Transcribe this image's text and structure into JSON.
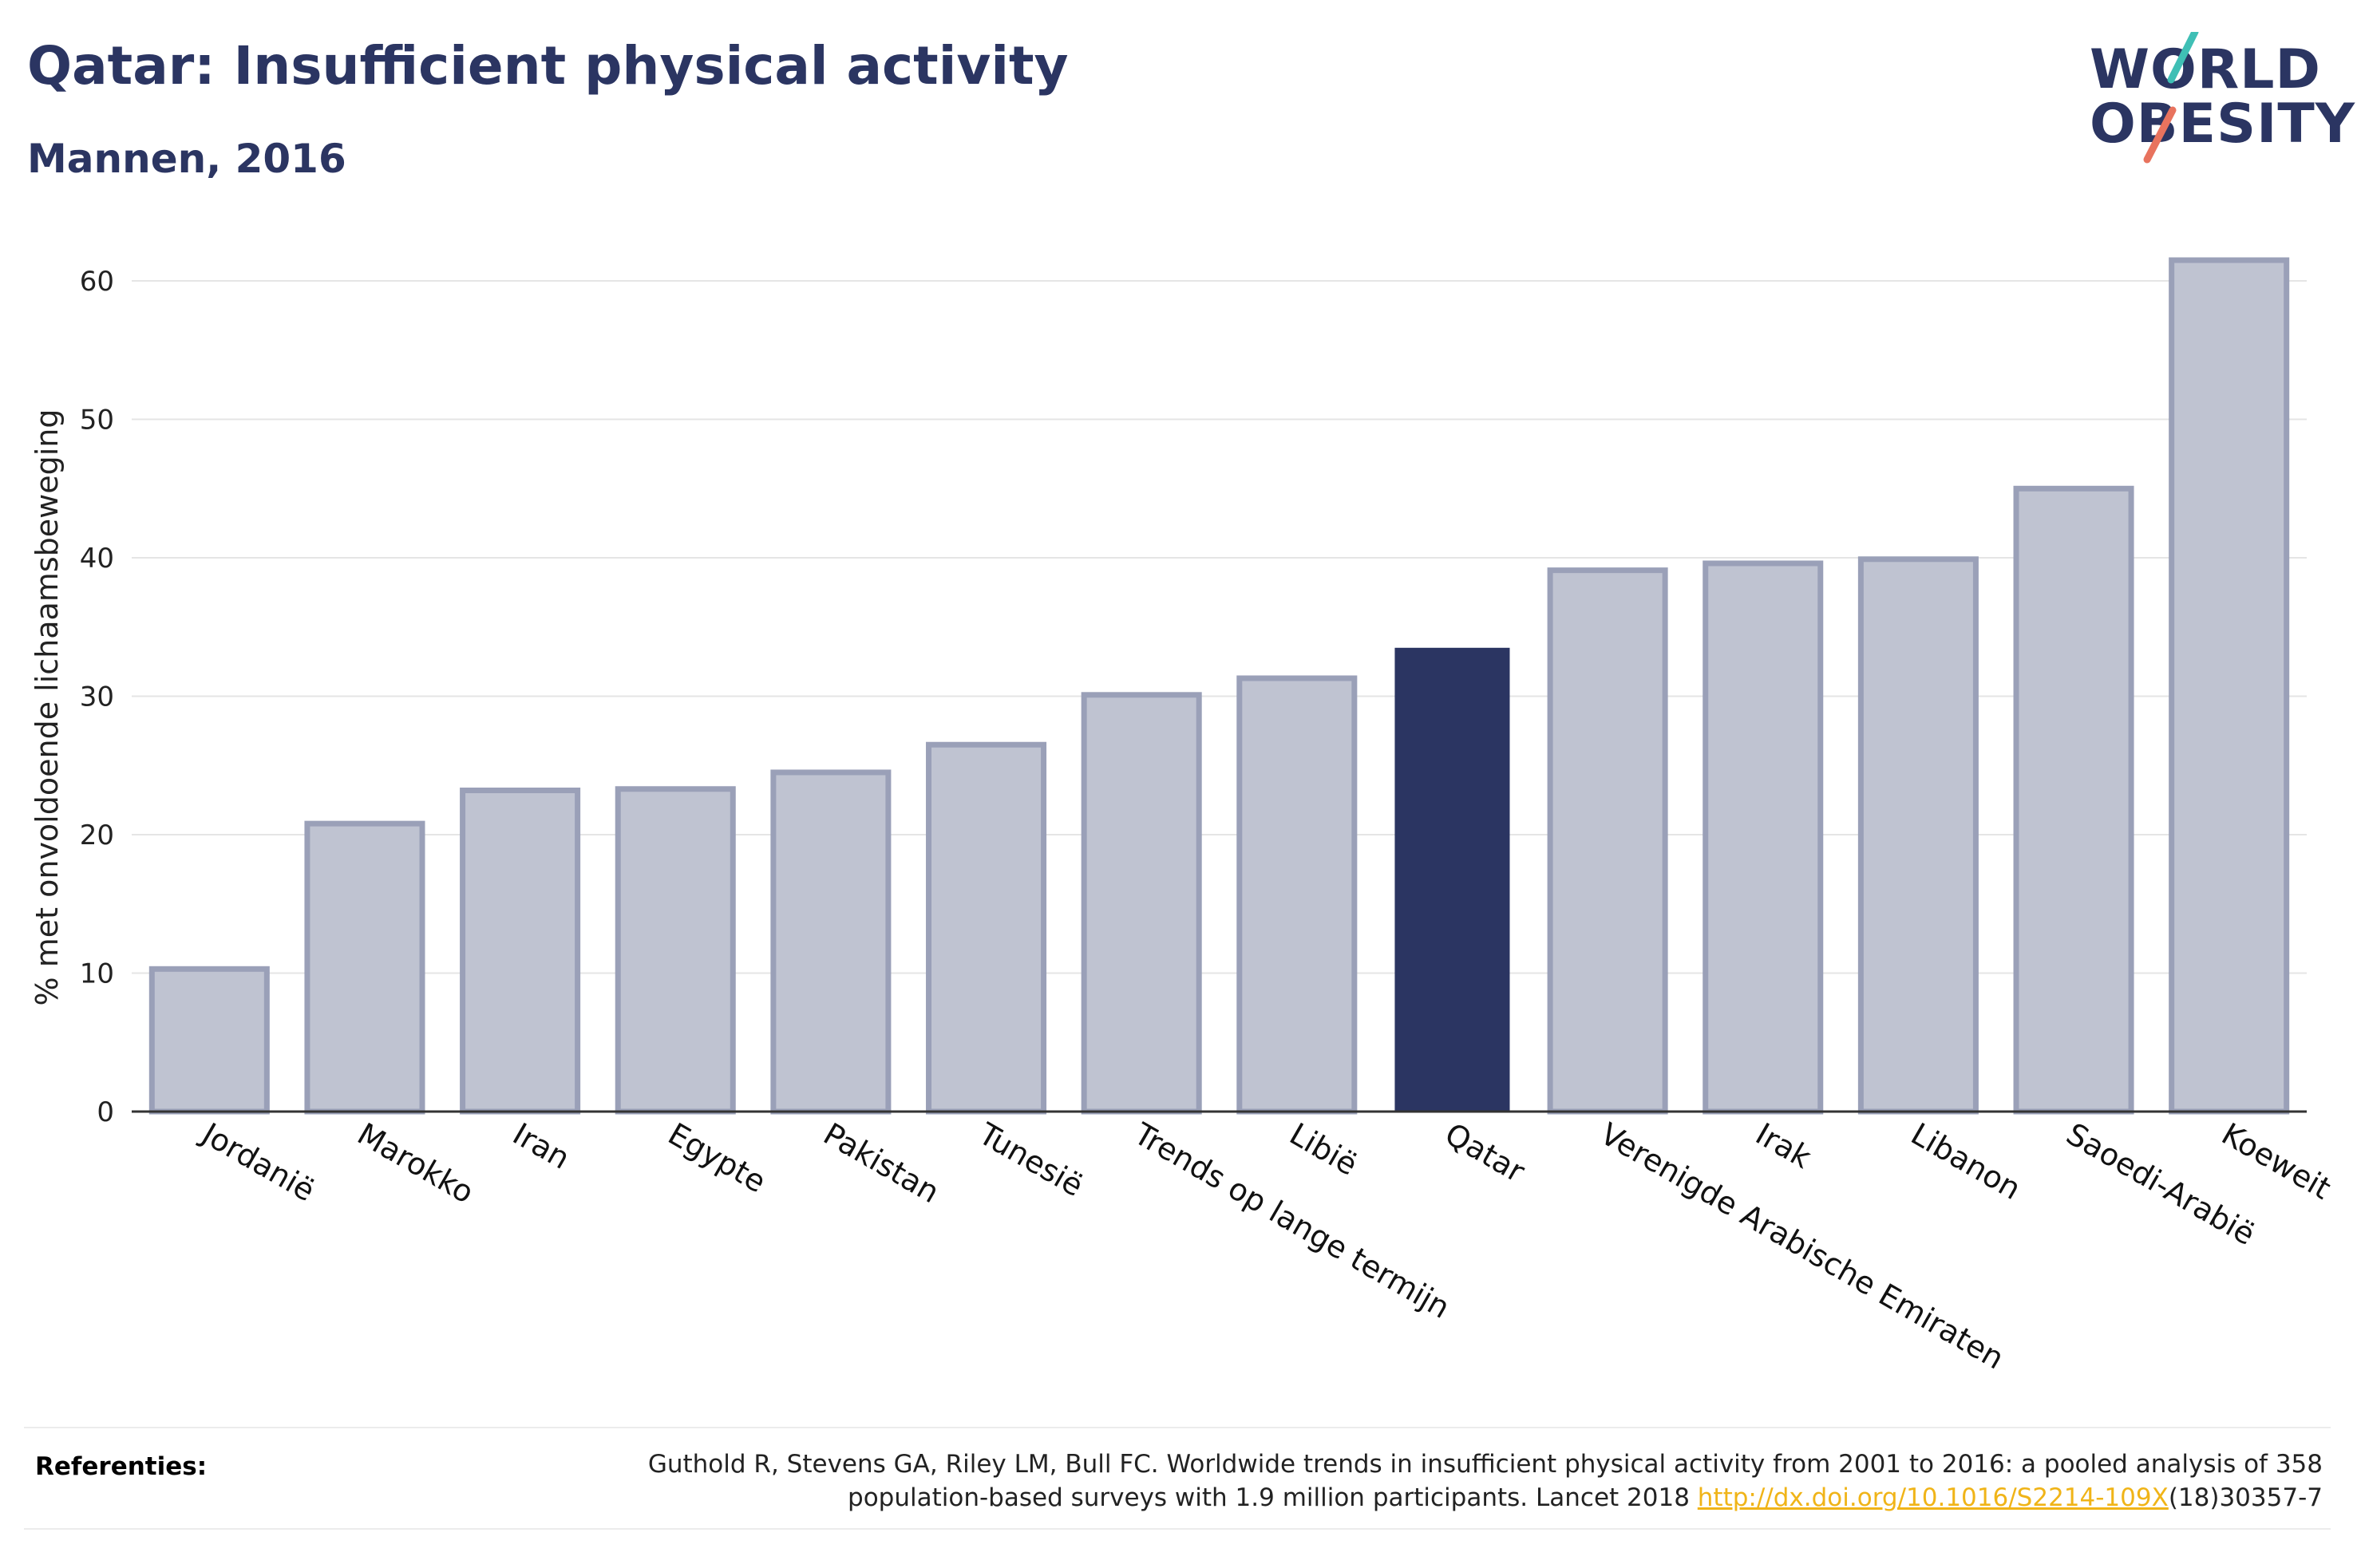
{
  "header": {
    "title": "Qatar: Insufficient physical activity",
    "subtitle": "Mannen, 2016"
  },
  "logo": {
    "line1": "WORLD",
    "line2": "OBESITY"
  },
  "colors": {
    "highlight": "#2b3562",
    "bar": "#bfc3d1",
    "bar_border": "#9aa0b8",
    "grid": "#e5e5e5",
    "link": "#f0b418"
  },
  "chart_data": {
    "type": "bar",
    "title": "Qatar: Insufficient physical activity",
    "subtitle": "Mannen, 2016",
    "ylabel": "% met onvoldoende lichaamsbeweging",
    "xlabel": "",
    "ylim": [
      0,
      63
    ],
    "yticks": [
      0,
      10,
      20,
      30,
      40,
      50,
      60
    ],
    "grid": true,
    "highlight": "Qatar",
    "categories": [
      "Jordanië",
      "Marokko",
      "Iran",
      "Egypte",
      "Pakistan",
      "Tunesië",
      "Trends op lange termijn",
      "Libië",
      "Qatar",
      "Verenigde Arabische Emiraten",
      "Irak",
      "Libanon",
      "Saoedi-Arabië",
      "Koeweit"
    ],
    "values": [
      10.3,
      20.8,
      23.2,
      23.3,
      24.5,
      26.5,
      30.1,
      31.3,
      33.5,
      39.1,
      39.6,
      39.9,
      45.0,
      61.5
    ]
  },
  "references": {
    "label": "Referenties:",
    "line1": "Guthold R, Stevens GA, Riley LM, Bull FC. Worldwide trends in insufficient physical activity from 2001 to 2016: a pooled analysis of 358",
    "line2_prefix": "population-based surveys with 1.9 million participants. Lancet 2018 ",
    "link": "http://dx.doi.org/10.1016/S2214-109X",
    "line2_suffix": "(18)30357-7"
  }
}
